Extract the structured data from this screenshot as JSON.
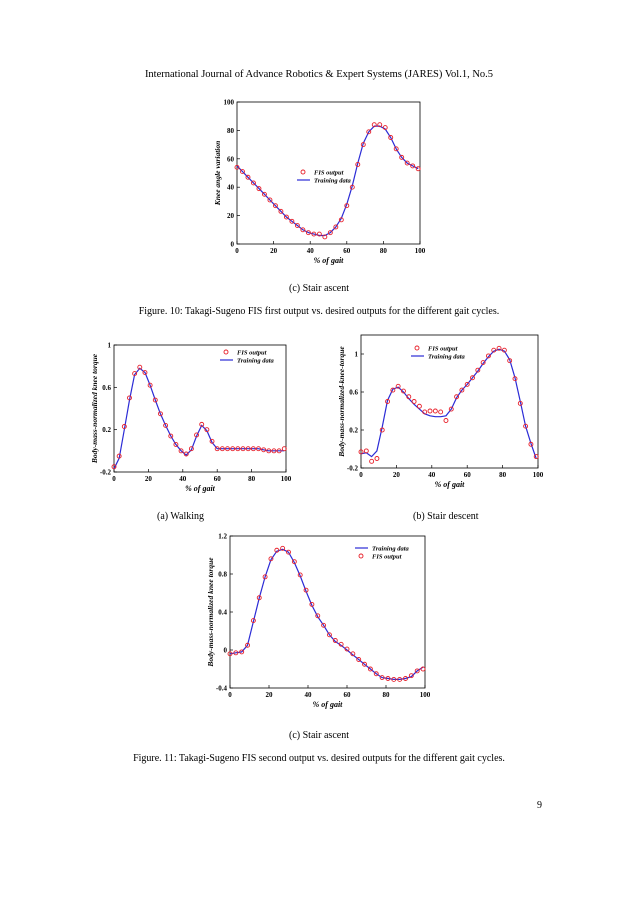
{
  "header": "International Journal of Advance Robotics & Expert Systems (JARES) Vol.1, No.5",
  "figure10": {
    "subcaption": "(c) Stair ascent",
    "caption": "Figure. 10: Takagi-Sugeno FIS first output vs. desired outputs for the different gait cycles."
  },
  "figure11": {
    "subcaption_a": "(a) Walking",
    "subcaption_b": "(b) Stair descent",
    "subcaption_c": "(c) Stair ascent",
    "caption": "Figure. 11: Takagi-Sugeno FIS second output vs. desired outputs for the different gait cycles."
  },
  "page_number": "9",
  "colors": {
    "fis_output": "#e8202a",
    "training_data": "#2b2bd6"
  },
  "chart_data": [
    {
      "id": "fig10c",
      "type": "line",
      "xlabel": "% of gait",
      "ylabel": "Knee angle variation",
      "xlim": [
        0,
        100
      ],
      "ylim": [
        0,
        100
      ],
      "xticks": [
        0,
        20,
        40,
        60,
        80,
        100
      ],
      "yticks": [
        0,
        20,
        40,
        60,
        80,
        100
      ],
      "legend": "center-right",
      "series": [
        {
          "name": "FIS output",
          "style": "markers",
          "x": [
            0,
            3,
            6,
            9,
            12,
            15,
            18,
            21,
            24,
            27,
            30,
            33,
            36,
            39,
            42,
            45,
            48,
            51,
            54,
            57,
            60,
            63,
            66,
            69,
            72,
            75,
            78,
            81,
            84,
            87,
            90,
            93,
            96,
            99
          ],
          "y": [
            54,
            51,
            47,
            43,
            39,
            35,
            31,
            27,
            23,
            19,
            16,
            13,
            10,
            8,
            7,
            7,
            5,
            8,
            12,
            17,
            27,
            40,
            56,
            70,
            79,
            84,
            84,
            82,
            75,
            67,
            61,
            57,
            55,
            53
          ]
        },
        {
          "name": "Training data",
          "style": "line",
          "x": [
            0,
            3,
            6,
            9,
            12,
            15,
            18,
            21,
            24,
            27,
            30,
            33,
            36,
            39,
            42,
            45,
            48,
            51,
            54,
            57,
            60,
            63,
            66,
            69,
            72,
            75,
            78,
            81,
            84,
            87,
            90,
            93,
            96,
            99
          ],
          "y": [
            55,
            51,
            47,
            43,
            39,
            35,
            31,
            27,
            23,
            19,
            16,
            13,
            10,
            8,
            7,
            6,
            6,
            8,
            12,
            18,
            28,
            41,
            57,
            71,
            79,
            83,
            83,
            81,
            75,
            67,
            61,
            57,
            55,
            53
          ]
        }
      ]
    },
    {
      "id": "fig11a",
      "type": "line",
      "xlabel": "% of gait",
      "ylabel": "Body-mass-normalized knee torque",
      "xlim": [
        0,
        100
      ],
      "ylim": [
        -0.2,
        1
      ],
      "xticks": [
        0,
        20,
        40,
        60,
        80,
        100
      ],
      "yticks": [
        -0.2,
        0.2,
        0.6,
        1
      ],
      "legend": "top-right",
      "series": [
        {
          "name": "FIS output",
          "style": "markers",
          "x": [
            0,
            3,
            6,
            9,
            12,
            15,
            18,
            21,
            24,
            27,
            30,
            33,
            36,
            39,
            42,
            45,
            48,
            51,
            54,
            57,
            60,
            63,
            66,
            69,
            72,
            75,
            78,
            81,
            84,
            87,
            90,
            93,
            96,
            99
          ],
          "y": [
            -0.15,
            -0.05,
            0.23,
            0.5,
            0.73,
            0.79,
            0.74,
            0.62,
            0.48,
            0.35,
            0.24,
            0.14,
            0.06,
            0.0,
            -0.03,
            0.02,
            0.15,
            0.25,
            0.2,
            0.09,
            0.02,
            0.02,
            0.02,
            0.02,
            0.02,
            0.02,
            0.02,
            0.02,
            0.02,
            0.01,
            0.0,
            0.0,
            0.0,
            0.02
          ]
        },
        {
          "name": "Training data",
          "style": "line",
          "x": [
            0,
            3,
            6,
            9,
            12,
            15,
            18,
            21,
            24,
            27,
            30,
            33,
            36,
            39,
            42,
            45,
            48,
            51,
            54,
            57,
            60,
            63,
            66,
            69,
            72,
            75,
            78,
            81,
            84,
            87,
            90,
            93,
            96,
            99
          ],
          "y": [
            -0.17,
            -0.07,
            0.2,
            0.48,
            0.72,
            0.78,
            0.74,
            0.62,
            0.48,
            0.35,
            0.24,
            0.14,
            0.06,
            0.0,
            -0.04,
            0.01,
            0.14,
            0.24,
            0.19,
            0.08,
            0.02,
            0.02,
            0.02,
            0.02,
            0.02,
            0.02,
            0.02,
            0.02,
            0.02,
            0.01,
            0.0,
            0.0,
            0.0,
            0.0
          ]
        }
      ]
    },
    {
      "id": "fig11b",
      "type": "line",
      "xlabel": "% of gait",
      "ylabel": "Body-mass-normalized-knee-torque",
      "xlim": [
        0,
        100
      ],
      "ylim": [
        -0.2,
        1.2
      ],
      "xticks": [
        0,
        20,
        40,
        60,
        80,
        100
      ],
      "yticks": [
        -0.2,
        0.2,
        0.6,
        1
      ],
      "legend": "top-center",
      "series": [
        {
          "name": "FIS output",
          "style": "markers",
          "x": [
            0,
            3,
            6,
            9,
            12,
            15,
            18,
            21,
            24,
            27,
            30,
            33,
            36,
            39,
            42,
            45,
            48,
            51,
            54,
            57,
            60,
            63,
            66,
            69,
            72,
            75,
            78,
            81,
            84,
            87,
            90,
            93,
            96,
            99
          ],
          "y": [
            -0.03,
            -0.02,
            -0.13,
            -0.1,
            0.2,
            0.5,
            0.62,
            0.66,
            0.61,
            0.55,
            0.5,
            0.45,
            0.39,
            0.4,
            0.4,
            0.39,
            0.3,
            0.42,
            0.55,
            0.62,
            0.68,
            0.75,
            0.83,
            0.91,
            0.98,
            1.04,
            1.06,
            1.04,
            0.93,
            0.74,
            0.48,
            0.24,
            0.05,
            -0.08
          ]
        },
        {
          "name": "Training data",
          "style": "line",
          "x": [
            0,
            3,
            6,
            9,
            12,
            15,
            18,
            21,
            24,
            27,
            30,
            33,
            36,
            39,
            42,
            45,
            48,
            51,
            54,
            57,
            60,
            63,
            66,
            69,
            72,
            75,
            78,
            81,
            84,
            87,
            90,
            93,
            96,
            99
          ],
          "y": [
            -0.05,
            -0.04,
            -0.08,
            -0.02,
            0.23,
            0.51,
            0.63,
            0.65,
            0.6,
            0.53,
            0.47,
            0.42,
            0.37,
            0.35,
            0.34,
            0.34,
            0.35,
            0.42,
            0.54,
            0.62,
            0.68,
            0.75,
            0.82,
            0.9,
            0.97,
            1.03,
            1.05,
            1.03,
            0.94,
            0.75,
            0.5,
            0.24,
            0.06,
            -0.1
          ]
        }
      ]
    },
    {
      "id": "fig11c",
      "type": "line",
      "xlabel": "% of gait",
      "ylabel": "Body-mass-normalized knee torque",
      "xlim": [
        0,
        100
      ],
      "ylim": [
        -0.4,
        1.2
      ],
      "xticks": [
        0,
        20,
        40,
        60,
        80,
        100
      ],
      "yticks": [
        -0.4,
        0,
        0.4,
        0.8,
        1.2
      ],
      "legend": "top-right",
      "series": [
        {
          "name": "Training data",
          "style": "line",
          "x": [
            0,
            3,
            6,
            9,
            12,
            15,
            18,
            21,
            24,
            27,
            30,
            33,
            36,
            39,
            42,
            45,
            48,
            51,
            54,
            57,
            60,
            63,
            66,
            69,
            72,
            75,
            78,
            81,
            84,
            87,
            90,
            93,
            96,
            99
          ],
          "y": [
            -0.04,
            -0.03,
            -0.02,
            0.05,
            0.3,
            0.55,
            0.77,
            0.95,
            1.04,
            1.06,
            1.03,
            0.92,
            0.78,
            0.62,
            0.47,
            0.35,
            0.26,
            0.16,
            0.09,
            0.05,
            0.0,
            -0.05,
            -0.1,
            -0.15,
            -0.2,
            -0.25,
            -0.29,
            -0.3,
            -0.31,
            -0.31,
            -0.3,
            -0.28,
            -0.22,
            -0.18
          ]
        },
        {
          "name": "FIS output",
          "style": "markers",
          "x": [
            0,
            3,
            6,
            9,
            12,
            15,
            18,
            21,
            24,
            27,
            30,
            33,
            36,
            39,
            42,
            45,
            48,
            51,
            54,
            57,
            60,
            63,
            66,
            69,
            72,
            75,
            78,
            81,
            84,
            87,
            90,
            93,
            96,
            99
          ],
          "y": [
            -0.04,
            -0.03,
            -0.02,
            0.05,
            0.31,
            0.55,
            0.77,
            0.96,
            1.05,
            1.07,
            1.03,
            0.93,
            0.79,
            0.63,
            0.48,
            0.36,
            0.26,
            0.16,
            0.1,
            0.06,
            0.01,
            -0.04,
            -0.1,
            -0.15,
            -0.2,
            -0.25,
            -0.29,
            -0.3,
            -0.31,
            -0.31,
            -0.3,
            -0.27,
            -0.22,
            -0.2
          ]
        }
      ]
    }
  ]
}
